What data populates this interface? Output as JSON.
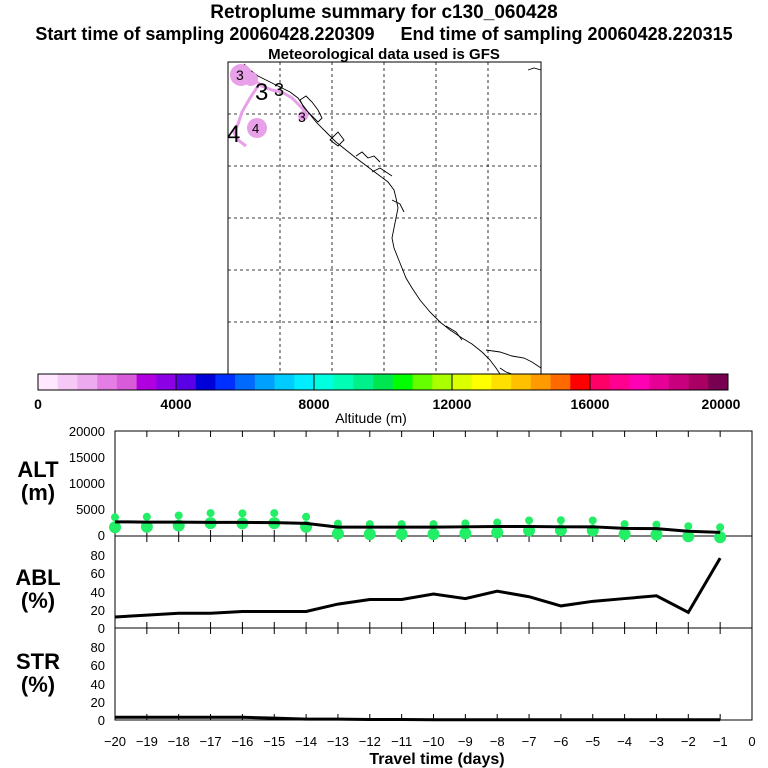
{
  "header": {
    "title": "Retroplume summary for c130_060428",
    "start_label": "Start time of sampling 20060428.220309",
    "end_label": "End time of sampling 20060428.220315",
    "met_label": "Meteorological data used is GFS"
  },
  "map": {
    "plume_labels": [
      "3",
      "3",
      "3",
      "3",
      "4",
      "4"
    ],
    "colors": {
      "plume": "#e8a0e8",
      "coast": "#000000",
      "grid": "#000000"
    }
  },
  "colorbar": {
    "colors": [
      "#ffe8ff",
      "#f5c8f5",
      "#eeaaee",
      "#e47ee4",
      "#d85cd8",
      "#b000e0",
      "#8c00e6",
      "#5a00e6",
      "#0000d8",
      "#0030ff",
      "#006aff",
      "#00a0ff",
      "#00ccff",
      "#00eeff",
      "#00ffe0",
      "#00ffb4",
      "#00f08c",
      "#00e650",
      "#00ff00",
      "#66ff00",
      "#aaff00",
      "#dcff00",
      "#ffff00",
      "#ffe000",
      "#ffc000",
      "#ff9a00",
      "#ff6a00",
      "#ff0000",
      "#ff0066",
      "#ff0090",
      "#ff00b4",
      "#e60096",
      "#c8007d",
      "#aa0064",
      "#780050"
    ],
    "tick_labels": [
      "0",
      "4000",
      "8000",
      "12000",
      "16000",
      "20000"
    ],
    "label": "Altitude (m)"
  },
  "panels": {
    "alt": {
      "label_top": "ALT",
      "label_bottom": "(m)",
      "ticks": [
        "0",
        "5000",
        "10000",
        "15000",
        "20000"
      ]
    },
    "abl": {
      "label_top": "ABL",
      "label_bottom": "(%)",
      "ticks": [
        "0",
        "20",
        "40",
        "60",
        "80"
      ]
    },
    "str": {
      "label_top": "STR",
      "label_bottom": "(%)",
      "ticks": [
        "0",
        "20",
        "40",
        "60",
        "80"
      ]
    }
  },
  "xaxis": {
    "label": "Travel time (days)",
    "tick_labels": [
      "−20",
      "−19",
      "−18",
      "−17",
      "−16",
      "−15",
      "−14",
      "−13",
      "−12",
      "−11",
      "−10",
      "−9",
      "−8",
      "−7",
      "−6",
      "−5",
      "−4",
      "−3",
      "−2",
      "−1",
      "0"
    ]
  },
  "chart_data": [
    {
      "type": "line",
      "name": "ALT",
      "title": "",
      "xlabel": "Travel time (days)",
      "ylabel": "ALT (m)",
      "xlim": [
        -20,
        0
      ],
      "ylim": [
        0,
        20000
      ],
      "x": [
        -20,
        -19,
        -18,
        -17,
        -16,
        -15,
        -14,
        -13,
        -12,
        -11,
        -10,
        -9,
        -8,
        -7,
        -6,
        -5,
        -4,
        -3,
        -2,
        -1
      ],
      "median": [
        2700,
        2650,
        2650,
        2600,
        2600,
        2550,
        2400,
        1700,
        1700,
        1700,
        1700,
        1750,
        1800,
        1800,
        1750,
        1750,
        1450,
        1400,
        900,
        700
      ],
      "scatter": [
        {
          "x": -20,
          "y": 2800
        },
        {
          "x": -19,
          "y": 2900
        },
        {
          "x": -18,
          "y": 3150
        },
        {
          "x": -17,
          "y": 3600
        },
        {
          "x": -16,
          "y": 3550
        },
        {
          "x": -15,
          "y": 3600
        },
        {
          "x": -14,
          "y": 2900
        },
        {
          "x": -13,
          "y": 1600
        },
        {
          "x": -12,
          "y": 1500
        },
        {
          "x": -11,
          "y": 1500
        },
        {
          "x": -10,
          "y": 1500
        },
        {
          "x": -9,
          "y": 1650
        },
        {
          "x": -8,
          "y": 1800
        },
        {
          "x": -7,
          "y": 2200
        },
        {
          "x": -6,
          "y": 2250
        },
        {
          "x": -5,
          "y": 2200
        },
        {
          "x": -4,
          "y": 1500
        },
        {
          "x": -3,
          "y": 1400
        },
        {
          "x": -2,
          "y": 1100
        },
        {
          "x": -1,
          "y": 900
        }
      ],
      "point_color": "#22ee66"
    },
    {
      "type": "line",
      "name": "ABL",
      "xlabel": "Travel time (days)",
      "ylabel": "ABL (%)",
      "xlim": [
        -20,
        0
      ],
      "ylim": [
        0,
        100
      ],
      "x": [
        -20,
        -19,
        -18,
        -17,
        -16,
        -15,
        -14,
        -13,
        -12,
        -11,
        -10,
        -9,
        -8,
        -7,
        -6,
        -5,
        -4,
        -3,
        -2,
        -1
      ],
      "values": [
        12,
        14,
        16,
        16,
        18,
        18,
        18,
        26,
        31,
        31,
        37,
        32,
        40,
        34,
        24,
        29,
        32,
        35,
        17,
        76
      ]
    },
    {
      "type": "line",
      "name": "STR",
      "xlabel": "Travel time (days)",
      "ylabel": "STR (%)",
      "xlim": [
        -20,
        0
      ],
      "ylim": [
        0,
        100
      ],
      "x": [
        -20,
        -19,
        -18,
        -17,
        -16,
        -15,
        -14,
        -13,
        -12,
        -11,
        -10,
        -9,
        -8,
        -7,
        -6,
        -5,
        -4,
        -3,
        -2,
        -1
      ],
      "values": [
        3,
        3,
        3,
        3,
        3,
        2,
        1,
        1,
        0.5,
        0.5,
        0.3,
        0.3,
        0.3,
        0.3,
        0.3,
        0.3,
        0.3,
        0.3,
        0.3,
        0.3
      ]
    }
  ]
}
